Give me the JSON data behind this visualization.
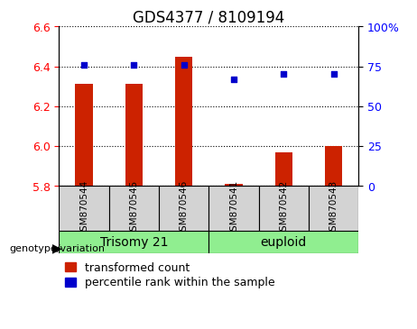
{
  "title": "GDS4377 / 8109194",
  "samples": [
    "GSM870544",
    "GSM870545",
    "GSM870546",
    "GSM870541",
    "GSM870542",
    "GSM870543"
  ],
  "groups": [
    "Trisomy 21",
    "Trisomy 21",
    "Trisomy 21",
    "euploid",
    "euploid",
    "euploid"
  ],
  "group_labels": [
    "Trisomy 21",
    "euploid"
  ],
  "group_colors": [
    "#90EE90",
    "#90EE90"
  ],
  "bar_values": [
    6.31,
    6.31,
    6.45,
    5.81,
    5.97,
    6.0
  ],
  "bar_bottom": 5.8,
  "dot_values": [
    76,
    76,
    76,
    67,
    70,
    70
  ],
  "ylim": [
    5.8,
    6.6
  ],
  "ylim_right": [
    0,
    100
  ],
  "yticks_left": [
    5.8,
    6.0,
    6.2,
    6.4,
    6.6
  ],
  "yticks_right": [
    0,
    25,
    50,
    75,
    100
  ],
  "bar_color": "#CC2200",
  "dot_color": "#0000CC",
  "grid_color": "#000000",
  "label_transformed": "transformed count",
  "label_percentile": "percentile rank within the sample",
  "genotype_label": "genotype/variation",
  "title_fontsize": 12,
  "tick_fontsize": 9,
  "legend_fontsize": 9,
  "group_label_fontsize": 10
}
